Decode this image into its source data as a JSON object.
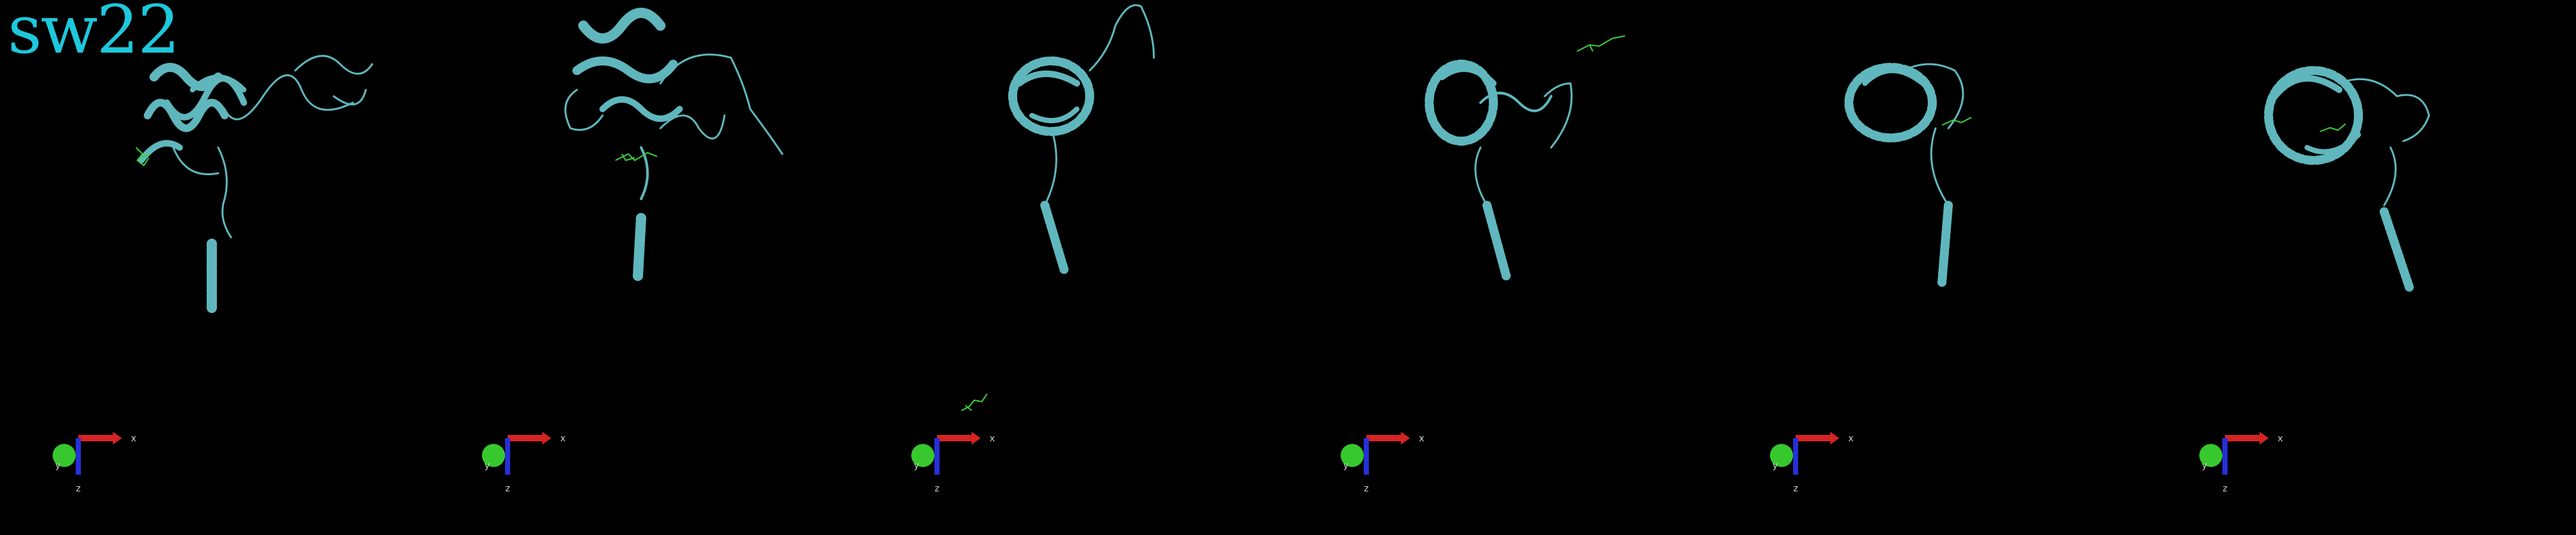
{
  "title": "sw22",
  "colors": {
    "title": "#1ec8dc",
    "protein": "#5fb7bd",
    "ligand": "#3ad13a",
    "x_axis": "#d42424",
    "y_axis": "#37c82e",
    "z_axis": "#2530d8"
  },
  "axis_labels": {
    "x": "x",
    "y": "y",
    "z": "z"
  },
  "panels": [
    {
      "name": "frame-1",
      "ligand": "left-of-helices"
    },
    {
      "name": "frame-2",
      "ligand": "below-helices"
    },
    {
      "name": "frame-3",
      "ligand": "detached-near-axes"
    },
    {
      "name": "frame-4",
      "ligand": "upper-right-detached"
    },
    {
      "name": "frame-5",
      "ligand": "right-of-core"
    },
    {
      "name": "frame-6",
      "ligand": "inside-core"
    }
  ]
}
